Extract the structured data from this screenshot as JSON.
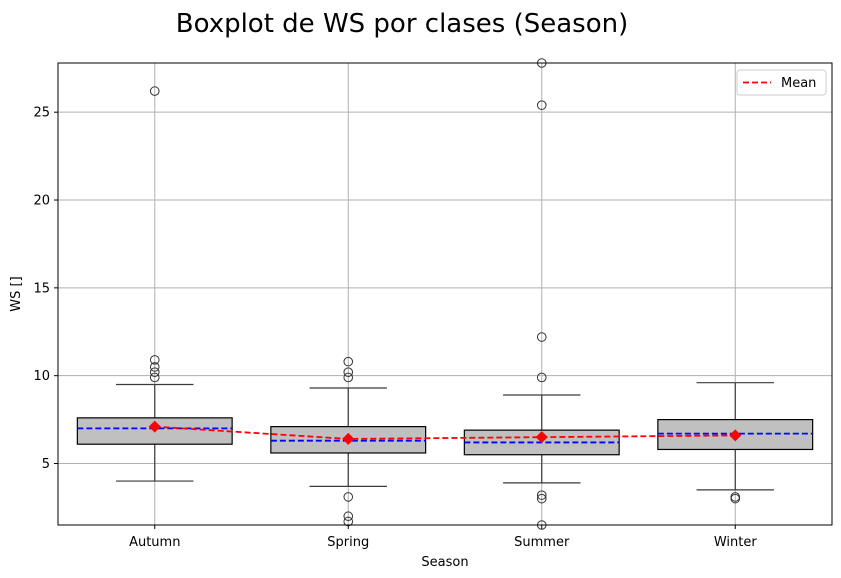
{
  "chart_data": {
    "type": "box",
    "title": "Boxplot de WS por clases (Season)",
    "xlabel": "Season",
    "ylabel": "WS []",
    "ylim": [
      1.5,
      27.8
    ],
    "yticks": [
      5,
      10,
      15,
      20,
      25
    ],
    "grid": true,
    "legend": {
      "position": "top-right",
      "entries": [
        "Mean"
      ]
    },
    "colors": {
      "box_fill": "#c0c0c0",
      "box_edge": "#000000",
      "whisker": "#3a3a3a",
      "median": "#0000ff",
      "mean_line": "#ff0000",
      "mean_marker": "#ff0000",
      "grid": "#b0b0b0"
    },
    "categories": [
      "Autumn",
      "Spring",
      "Summer",
      "Winter"
    ],
    "boxes": [
      {
        "category": "Autumn",
        "q1": 6.1,
        "median": 7.0,
        "q3": 7.6,
        "whisker_low": 4.0,
        "whisker_high": 9.5,
        "mean": 7.1,
        "outliers": [
          26.2,
          10.9,
          10.5,
          10.2,
          9.9
        ]
      },
      {
        "category": "Spring",
        "q1": 5.6,
        "median": 6.3,
        "q3": 7.1,
        "whisker_low": 3.7,
        "whisker_high": 9.3,
        "mean": 6.4,
        "outliers": [
          10.8,
          10.2,
          9.9,
          3.1,
          2.0,
          1.7
        ]
      },
      {
        "category": "Summer",
        "q1": 5.5,
        "median": 6.2,
        "q3": 6.9,
        "whisker_low": 3.9,
        "whisker_high": 8.9,
        "mean": 6.5,
        "outliers": [
          27.8,
          25.4,
          12.2,
          9.9,
          3.2,
          3.0,
          1.5
        ]
      },
      {
        "category": "Winter",
        "q1": 5.8,
        "median": 6.7,
        "q3": 7.5,
        "whisker_low": 3.5,
        "whisker_high": 9.6,
        "mean": 6.6,
        "outliers": [
          3.1,
          3.0
        ]
      }
    ]
  }
}
